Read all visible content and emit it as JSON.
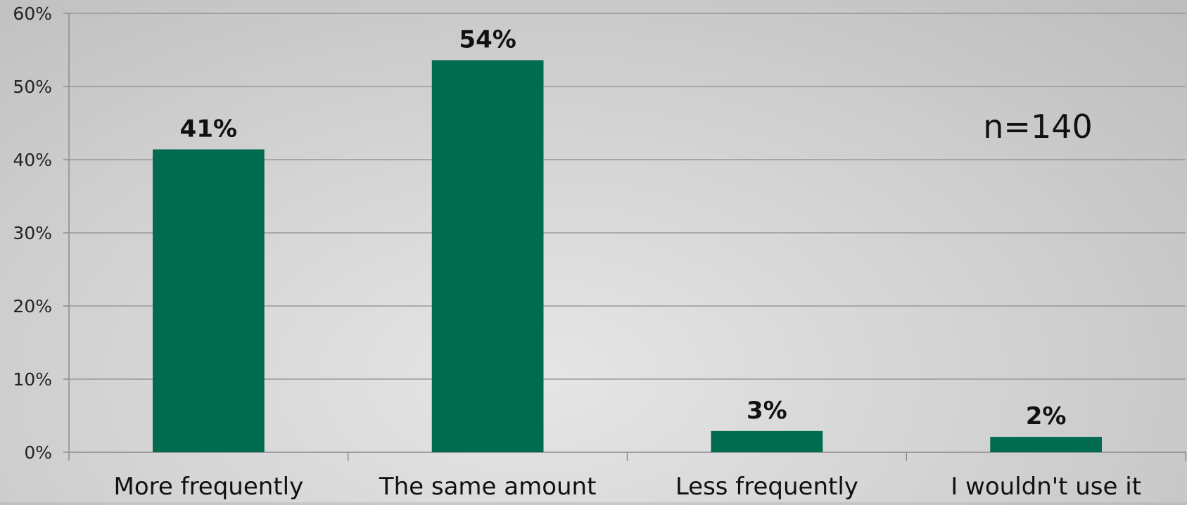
{
  "chart_data": {
    "type": "bar",
    "title": "",
    "xlabel": "",
    "ylabel": "",
    "categories": [
      "More frequently",
      "The same amount",
      "Less frequently",
      "I wouldn't use it"
    ],
    "values": [
      41.4,
      53.6,
      2.9,
      2.1
    ],
    "data_labels": [
      "41%",
      "54%",
      "3%",
      "2%"
    ],
    "ylim": [
      0,
      60
    ],
    "yticks": [
      0,
      10,
      20,
      30,
      40,
      50,
      60
    ],
    "ytick_labels": [
      "0%",
      "10%",
      "20%",
      "30%",
      "40%",
      "50%",
      "60%"
    ],
    "grid": true,
    "legend": "none",
    "annotation": "n=140",
    "bar_color": "#006b4f"
  }
}
